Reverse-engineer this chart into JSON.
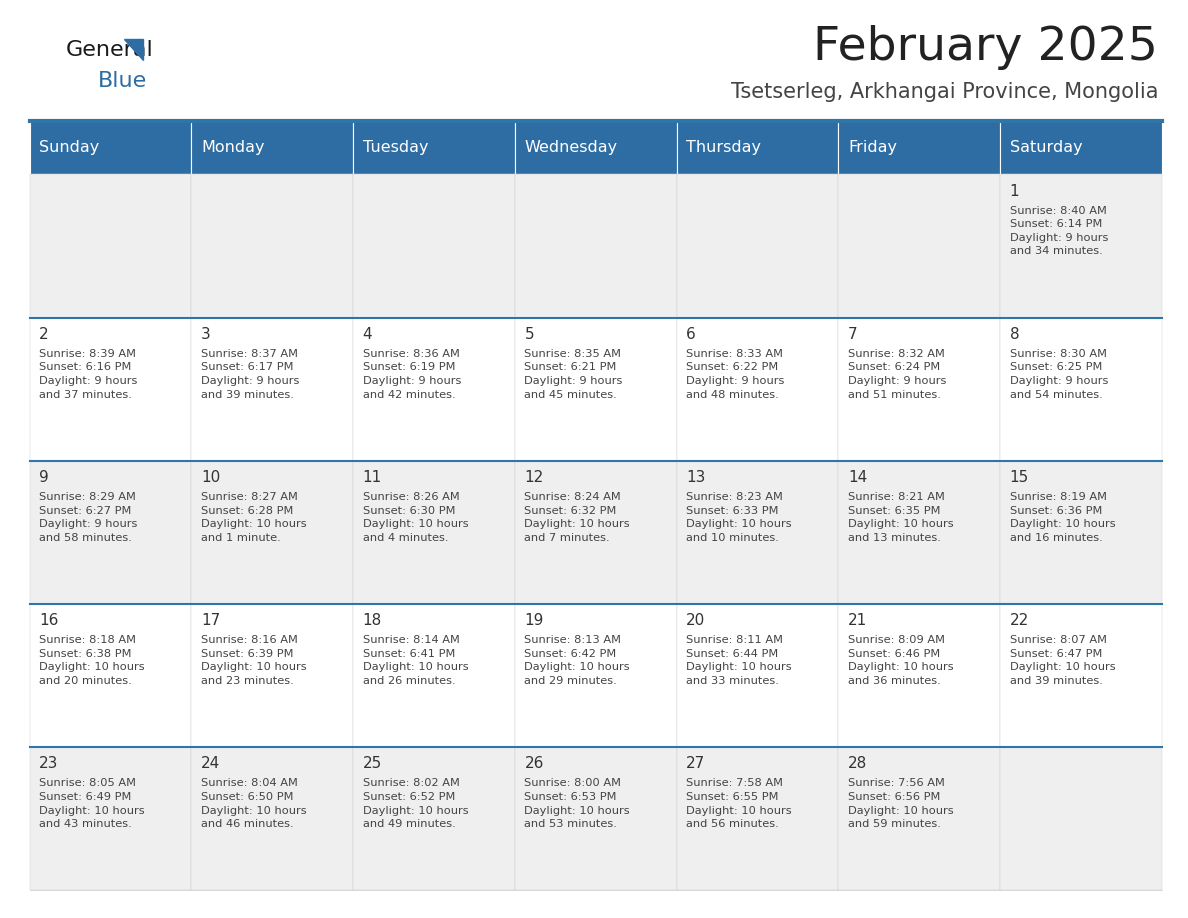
{
  "title": "February 2025",
  "subtitle": "Tsetserleg, Arkhangai Province, Mongolia",
  "header_bg": "#2E6DA4",
  "header_text_color": "#FFFFFF",
  "cell_bg_light": "#EFEFEF",
  "cell_bg_white": "#FFFFFF",
  "day_headers": [
    "Sunday",
    "Monday",
    "Tuesday",
    "Wednesday",
    "Thursday",
    "Friday",
    "Saturday"
  ],
  "title_color": "#222222",
  "subtitle_color": "#444444",
  "border_color": "#2E75A8",
  "day_number_color": "#333333",
  "text_color": "#444444",
  "logo_general_color": "#1a1a1a",
  "logo_blue_color": "#2E6DA4",
  "logo_triangle_color": "#2E6DA4",
  "calendar_data": [
    [
      {
        "day": "",
        "info": ""
      },
      {
        "day": "",
        "info": ""
      },
      {
        "day": "",
        "info": ""
      },
      {
        "day": "",
        "info": ""
      },
      {
        "day": "",
        "info": ""
      },
      {
        "day": "",
        "info": ""
      },
      {
        "day": "1",
        "info": "Sunrise: 8:40 AM\nSunset: 6:14 PM\nDaylight: 9 hours\nand 34 minutes."
      }
    ],
    [
      {
        "day": "2",
        "info": "Sunrise: 8:39 AM\nSunset: 6:16 PM\nDaylight: 9 hours\nand 37 minutes."
      },
      {
        "day": "3",
        "info": "Sunrise: 8:37 AM\nSunset: 6:17 PM\nDaylight: 9 hours\nand 39 minutes."
      },
      {
        "day": "4",
        "info": "Sunrise: 8:36 AM\nSunset: 6:19 PM\nDaylight: 9 hours\nand 42 minutes."
      },
      {
        "day": "5",
        "info": "Sunrise: 8:35 AM\nSunset: 6:21 PM\nDaylight: 9 hours\nand 45 minutes."
      },
      {
        "day": "6",
        "info": "Sunrise: 8:33 AM\nSunset: 6:22 PM\nDaylight: 9 hours\nand 48 minutes."
      },
      {
        "day": "7",
        "info": "Sunrise: 8:32 AM\nSunset: 6:24 PM\nDaylight: 9 hours\nand 51 minutes."
      },
      {
        "day": "8",
        "info": "Sunrise: 8:30 AM\nSunset: 6:25 PM\nDaylight: 9 hours\nand 54 minutes."
      }
    ],
    [
      {
        "day": "9",
        "info": "Sunrise: 8:29 AM\nSunset: 6:27 PM\nDaylight: 9 hours\nand 58 minutes."
      },
      {
        "day": "10",
        "info": "Sunrise: 8:27 AM\nSunset: 6:28 PM\nDaylight: 10 hours\nand 1 minute."
      },
      {
        "day": "11",
        "info": "Sunrise: 8:26 AM\nSunset: 6:30 PM\nDaylight: 10 hours\nand 4 minutes."
      },
      {
        "day": "12",
        "info": "Sunrise: 8:24 AM\nSunset: 6:32 PM\nDaylight: 10 hours\nand 7 minutes."
      },
      {
        "day": "13",
        "info": "Sunrise: 8:23 AM\nSunset: 6:33 PM\nDaylight: 10 hours\nand 10 minutes."
      },
      {
        "day": "14",
        "info": "Sunrise: 8:21 AM\nSunset: 6:35 PM\nDaylight: 10 hours\nand 13 minutes."
      },
      {
        "day": "15",
        "info": "Sunrise: 8:19 AM\nSunset: 6:36 PM\nDaylight: 10 hours\nand 16 minutes."
      }
    ],
    [
      {
        "day": "16",
        "info": "Sunrise: 8:18 AM\nSunset: 6:38 PM\nDaylight: 10 hours\nand 20 minutes."
      },
      {
        "day": "17",
        "info": "Sunrise: 8:16 AM\nSunset: 6:39 PM\nDaylight: 10 hours\nand 23 minutes."
      },
      {
        "day": "18",
        "info": "Sunrise: 8:14 AM\nSunset: 6:41 PM\nDaylight: 10 hours\nand 26 minutes."
      },
      {
        "day": "19",
        "info": "Sunrise: 8:13 AM\nSunset: 6:42 PM\nDaylight: 10 hours\nand 29 minutes."
      },
      {
        "day": "20",
        "info": "Sunrise: 8:11 AM\nSunset: 6:44 PM\nDaylight: 10 hours\nand 33 minutes."
      },
      {
        "day": "21",
        "info": "Sunrise: 8:09 AM\nSunset: 6:46 PM\nDaylight: 10 hours\nand 36 minutes."
      },
      {
        "day": "22",
        "info": "Sunrise: 8:07 AM\nSunset: 6:47 PM\nDaylight: 10 hours\nand 39 minutes."
      }
    ],
    [
      {
        "day": "23",
        "info": "Sunrise: 8:05 AM\nSunset: 6:49 PM\nDaylight: 10 hours\nand 43 minutes."
      },
      {
        "day": "24",
        "info": "Sunrise: 8:04 AM\nSunset: 6:50 PM\nDaylight: 10 hours\nand 46 minutes."
      },
      {
        "day": "25",
        "info": "Sunrise: 8:02 AM\nSunset: 6:52 PM\nDaylight: 10 hours\nand 49 minutes."
      },
      {
        "day": "26",
        "info": "Sunrise: 8:00 AM\nSunset: 6:53 PM\nDaylight: 10 hours\nand 53 minutes."
      },
      {
        "day": "27",
        "info": "Sunrise: 7:58 AM\nSunset: 6:55 PM\nDaylight: 10 hours\nand 56 minutes."
      },
      {
        "day": "28",
        "info": "Sunrise: 7:56 AM\nSunset: 6:56 PM\nDaylight: 10 hours\nand 59 minutes."
      },
      {
        "day": "",
        "info": ""
      }
    ]
  ]
}
